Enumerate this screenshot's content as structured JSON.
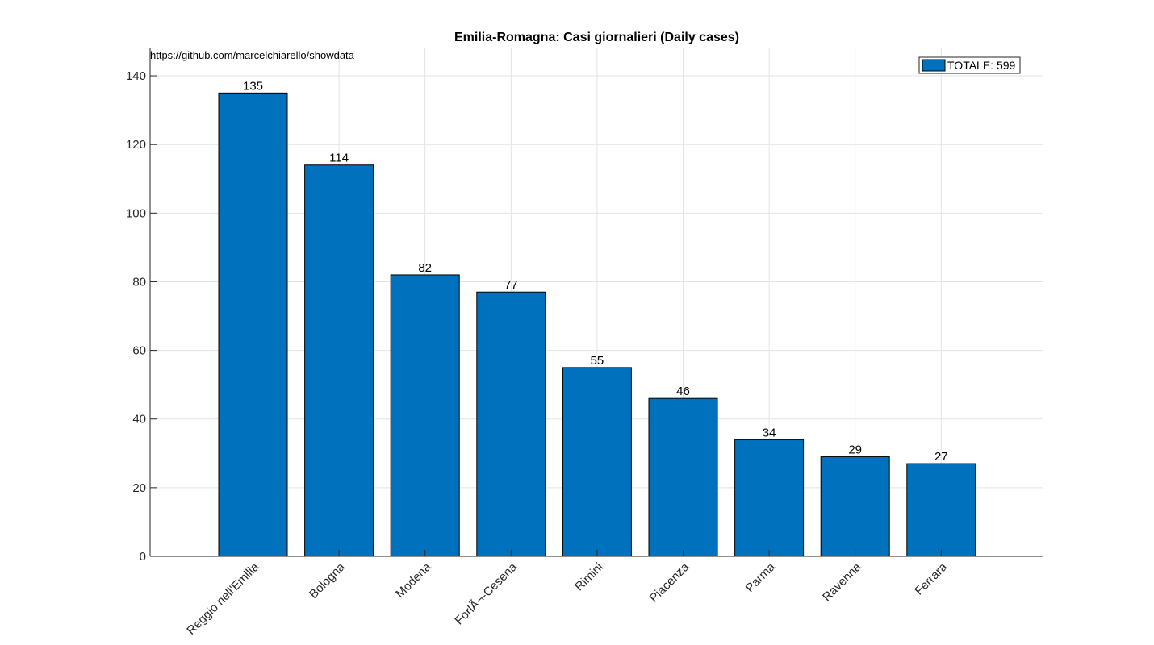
{
  "chart_data": {
    "type": "bar",
    "title": "Emilia-Romagna: Casi giornalieri (Daily cases)",
    "source_note": "https://github.com/marcelchiarello/showdata",
    "categories": [
      "Reggio nell'Emilia",
      "Bologna",
      "Modena",
      "ForlÃ¬-Cesena",
      "Rimini",
      "Piacenza",
      "Parma",
      "Ravenna",
      "Ferrara"
    ],
    "values": [
      135,
      114,
      82,
      77,
      55,
      46,
      34,
      29,
      27
    ],
    "data_labels": [
      "135",
      "114",
      "82",
      "77",
      "55",
      "46",
      "34",
      "29",
      "27"
    ],
    "legend": {
      "label": "TOTALE: 599",
      "position": "top-right"
    },
    "ylim": [
      0,
      148
    ],
    "yticks": [
      0,
      20,
      40,
      60,
      80,
      100,
      120,
      140
    ],
    "ytick_labels": [
      "0",
      "20",
      "40",
      "60",
      "80",
      "100",
      "120",
      "140"
    ],
    "grid": true,
    "xlabel": "",
    "ylabel": "",
    "colors": {
      "bar": "#0072BD",
      "edge": "#000000",
      "grid": "#e3e3e3",
      "axis": "#262626"
    }
  }
}
